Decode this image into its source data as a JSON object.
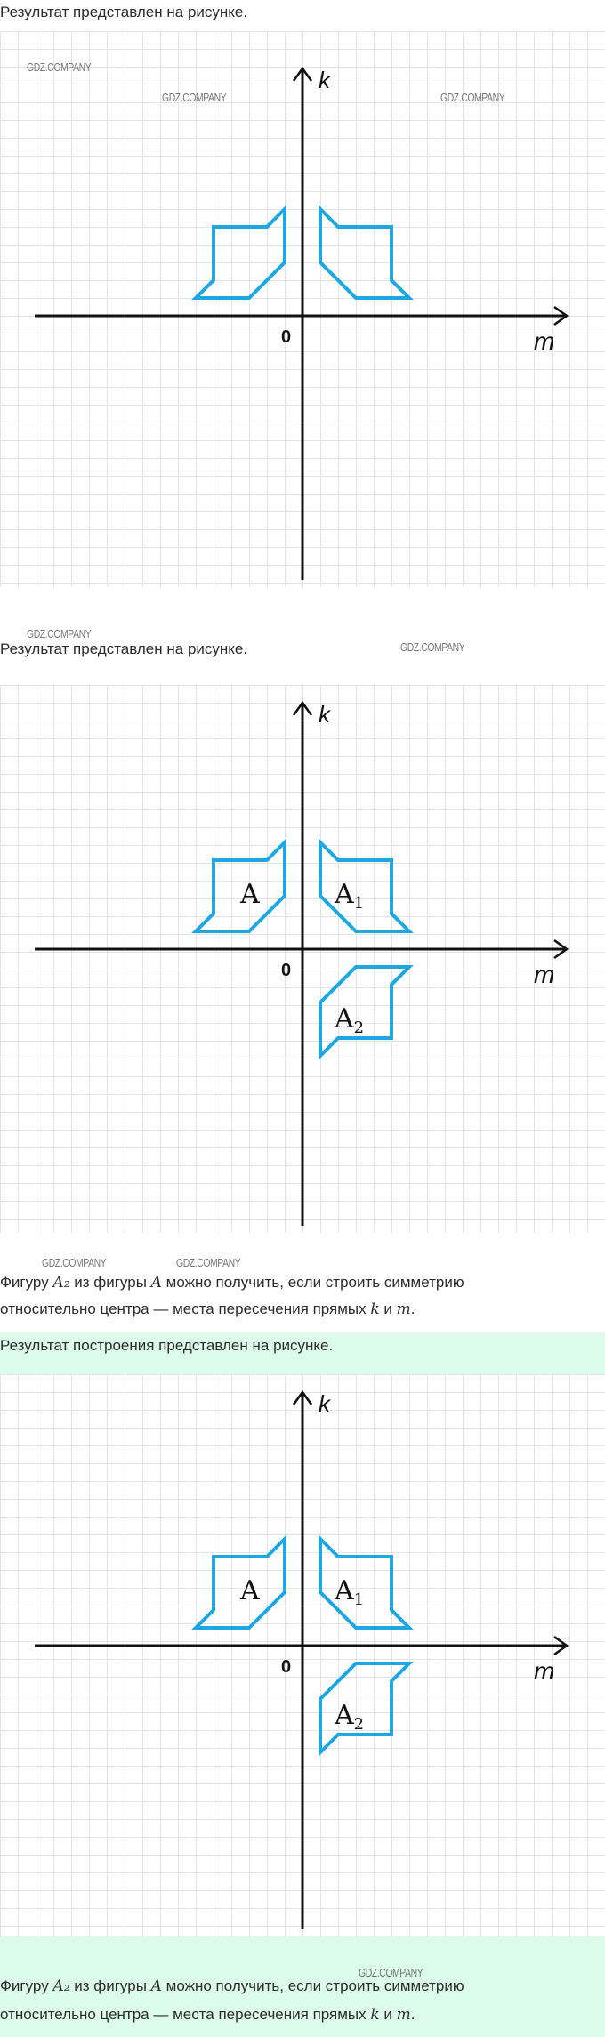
{
  "section1": {
    "intro": "Результат представлен на рисунке."
  },
  "section2": {
    "intro": "Результат представлен на рисунке.",
    "explanation": {
      "p1": "Фигуру ",
      "a2": "A₂",
      "p2": " из фигуры ",
      "a": "A",
      "p3": " можно получить, если строить симметрию",
      "p4": "относительно центра — места пересечения прямых ",
      "k": "k",
      "p5": " и ",
      "m": "m",
      "p6": "."
    }
  },
  "section3": {
    "intro": "Результат построения представлен на рисунке.",
    "explanation": {
      "p1": "Фигуру ",
      "a2": "A₂",
      "p2": " из фигуры ",
      "a": "A",
      "p3": " можно получить, если строить симметрию",
      "p4": "относительно центра — места пересечения прямых ",
      "k": "k",
      "p5": " и ",
      "m": "m",
      "p6": "."
    }
  },
  "axes": {
    "vertical": "k",
    "horizontal": "m",
    "origin": "0"
  },
  "figures": {
    "a": "A",
    "a1": "A1",
    "a2": "A2",
    "sub1": "1",
    "sub2": "2",
    "base": "A"
  },
  "colors": {
    "figure": "#1ea7e1",
    "axis": "#111111",
    "band": "#dcfbea"
  },
  "watermark": "GDZ.COMPANY"
}
